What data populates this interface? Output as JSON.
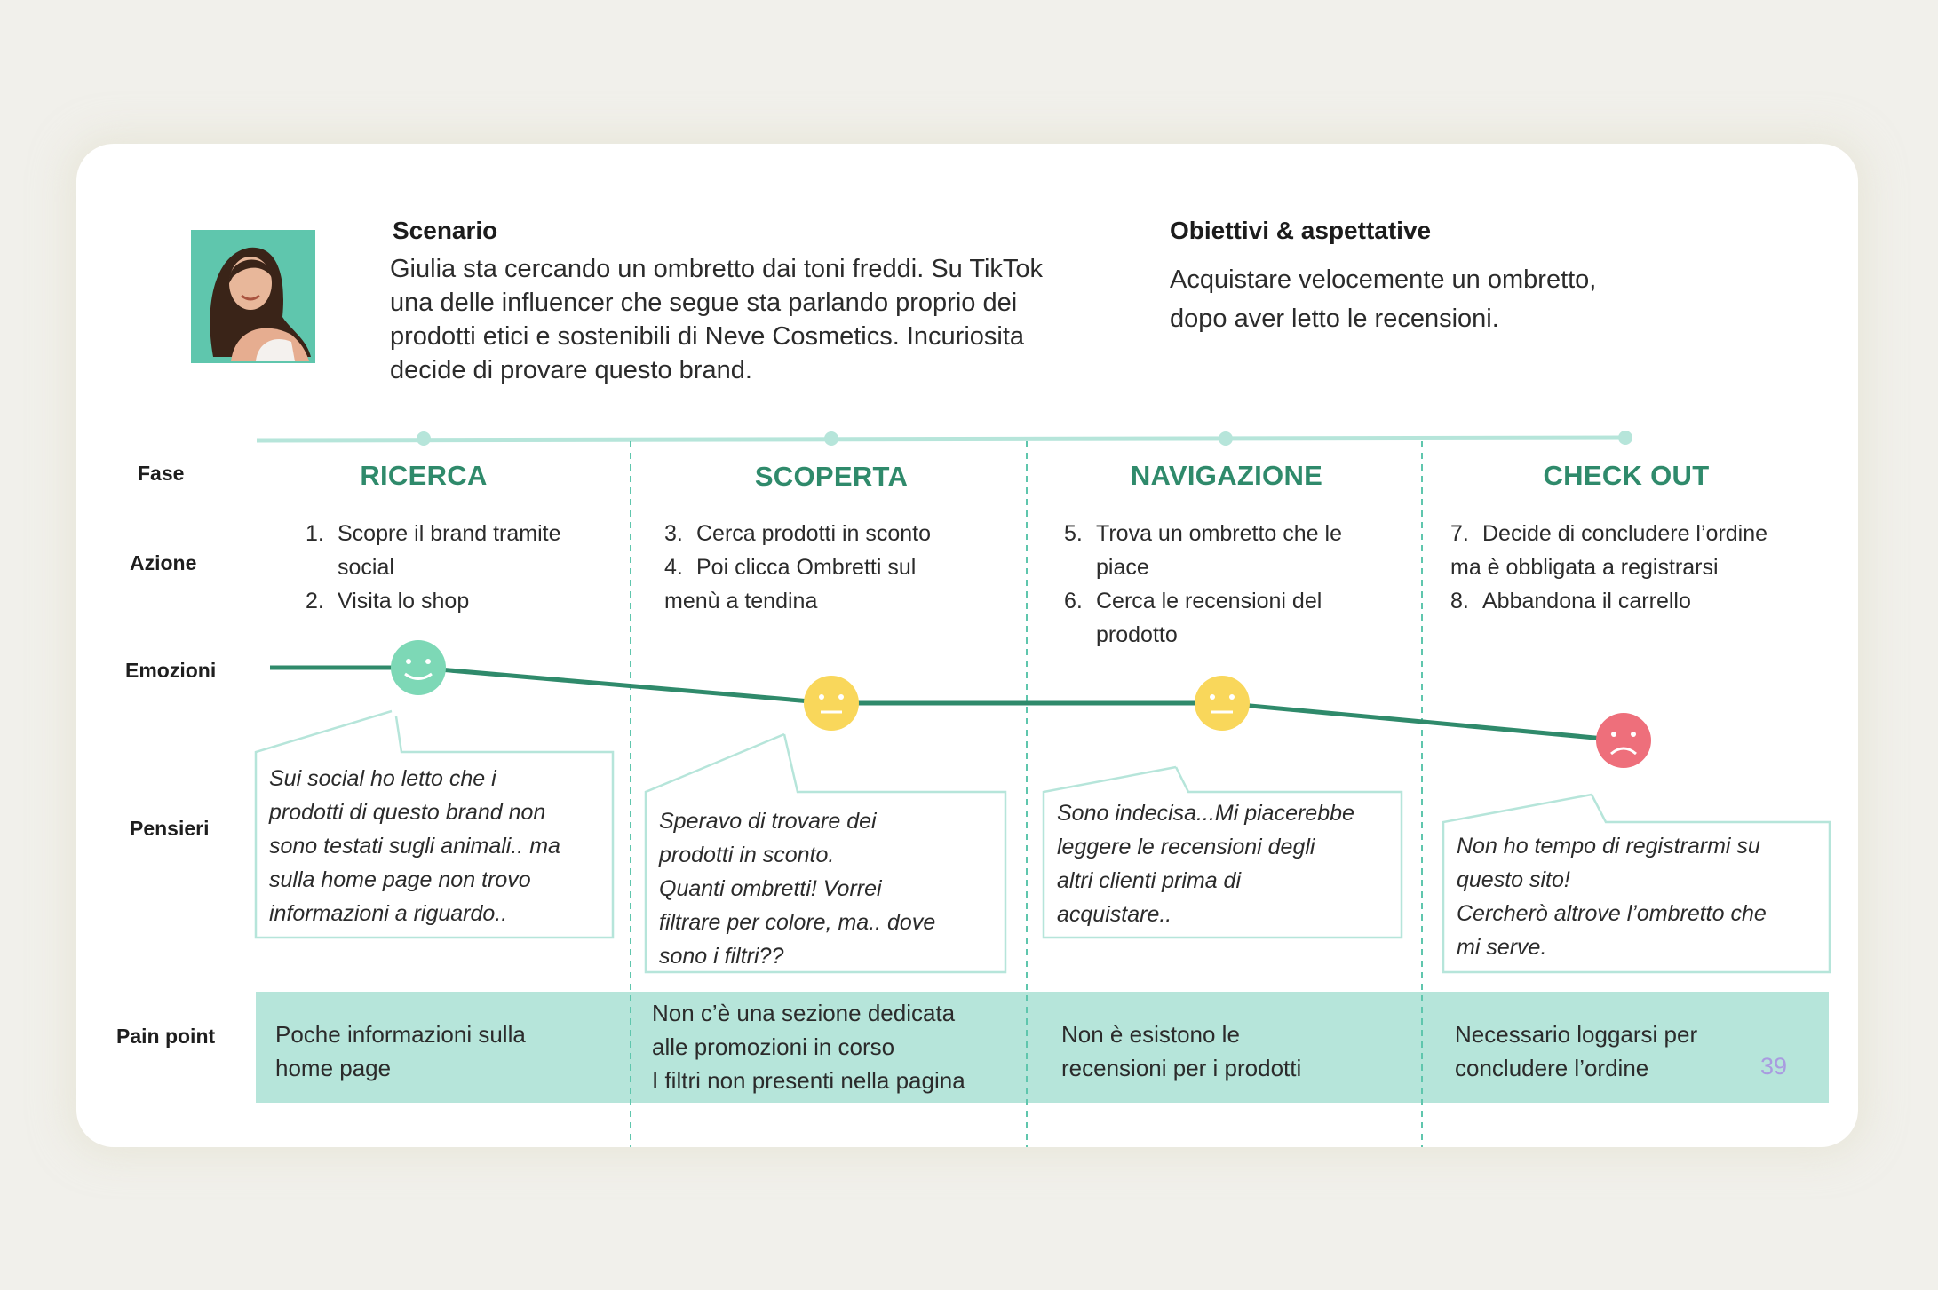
{
  "scenario": {
    "title": "Scenario",
    "lines": [
      "Giulia sta cercando un ombretto dai toni freddi. Su TikTok",
      "una delle influencer che segue sta parlando proprio dei",
      "prodotti etici e sostenibili di Neve Cosmetics. Incuriosita",
      "decide di provare questo brand."
    ]
  },
  "goals": {
    "title": "Obiettivi & aspettative",
    "lines": [
      "Acquistare velocemente un ombretto,",
      "dopo aver letto le recensioni."
    ]
  },
  "row_labels": {
    "phase": "Fase",
    "action": "Azione",
    "emotion": "Emozioni",
    "thoughts": "Pensieri",
    "pain": "Pain point"
  },
  "phases": [
    {
      "name": "RICERCA",
      "actions": [
        {
          "num": "1.",
          "lines": [
            "Scopre il brand tramite",
            "social"
          ]
        },
        {
          "num": "2.",
          "lines": [
            "Visita lo shop"
          ]
        }
      ],
      "emotion": "happy",
      "thought": [
        "Sui social ho letto che i",
        "prodotti di questo brand non",
        "sono testati sugli animali.. ma",
        "sulla home page non trovo",
        "informazioni a riguardo.."
      ],
      "pain": [
        "Poche informazioni sulla",
        "home page"
      ]
    },
    {
      "name": "SCOPERTA",
      "actions": [
        {
          "num": "3.",
          "lines": [
            "Cerca prodotti in sconto"
          ]
        },
        {
          "num": "4.",
          "lines": [
            "Poi clicca Ombretti sul",
            "menù a tendina"
          ]
        }
      ],
      "emotion": "neutral",
      "thought": [
        "Speravo di trovare dei",
        "prodotti in sconto.",
        "Quanti ombretti! Vorrei",
        "filtrare per colore, ma.. dove",
        "sono i filtri??"
      ],
      "pain": [
        "Non c’è una sezione dedicata",
        "alle promozioni in corso",
        "I filtri non presenti nella pagina"
      ]
    },
    {
      "name": "NAVIGAZIONE",
      "actions": [
        {
          "num": "5.",
          "lines": [
            "Trova un ombretto che le",
            "piace"
          ]
        },
        {
          "num": "6.",
          "lines": [
            "Cerca le recensioni del",
            "prodotto"
          ]
        }
      ],
      "emotion": "neutral",
      "thought": [
        "Sono indecisa...Mi piacerebbe",
        "leggere le recensioni degli",
        "altri clienti prima di",
        "acquistare.."
      ],
      "pain": [
        "Non è esistono le",
        "recensioni per i prodotti"
      ]
    },
    {
      "name": "CHECK OUT",
      "actions": [
        {
          "num": "7.",
          "lines": [
            "Decide di concludere l’ordine",
            "ma è obbligata a registrarsi"
          ]
        },
        {
          "num": "8.",
          "lines": [
            "Abbandona il carrello"
          ]
        }
      ],
      "emotion": "sad",
      "thought": [
        "Non ho tempo di registrarmi su",
        "questo sito!",
        "Cercherò altrove l’ombretto che",
        "mi serve."
      ],
      "pain": [
        "Necessario loggarsi per",
        "concludere l’ordine"
      ]
    }
  ],
  "page_number": "39",
  "colors": {
    "accent": "#2f8a6b",
    "timeline": "#b6e5da",
    "pain_band": "#b6e5da",
    "happy": "#7dd8b6",
    "neutral": "#f9d75b",
    "sad": "#ee6f7b",
    "page_number": "#a99be0"
  },
  "icons": [
    "user-photo",
    "smiley-happy-icon",
    "smiley-neutral-icon",
    "smiley-sad-icon"
  ]
}
